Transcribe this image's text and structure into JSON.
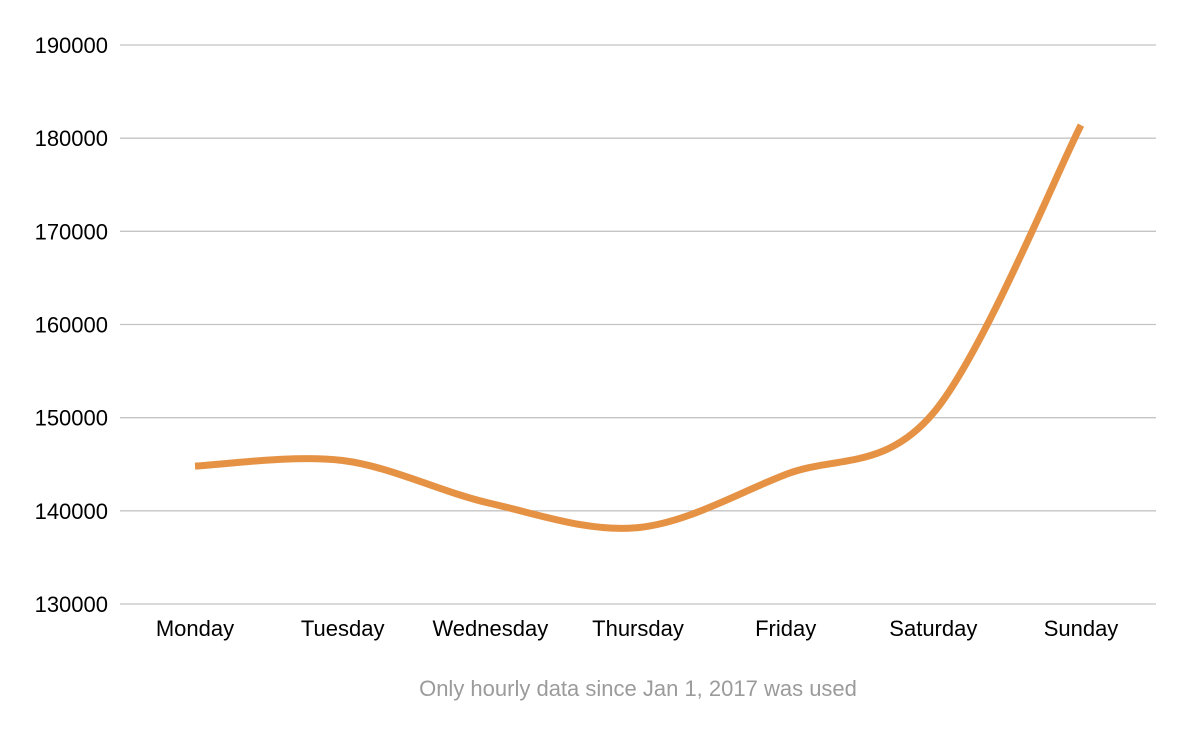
{
  "chart_data": {
    "type": "line",
    "title": "",
    "xlabel": "",
    "ylabel": "",
    "categories": [
      "Monday",
      "Tuesday",
      "Wednesday",
      "Thursday",
      "Friday",
      "Saturday",
      "Sunday"
    ],
    "series": [
      {
        "values": [
          144800,
          145400,
          140800,
          138200,
          143900,
          150500,
          181400
        ],
        "color": "#e69245"
      }
    ],
    "ylim": [
      130000,
      190000
    ],
    "yticks": [
      130000,
      140000,
      150000,
      160000,
      170000,
      180000,
      190000
    ],
    "grid": true,
    "smooth": true,
    "legend": "none",
    "footnote": "Only hourly data since Jan 1, 2017 was used"
  }
}
